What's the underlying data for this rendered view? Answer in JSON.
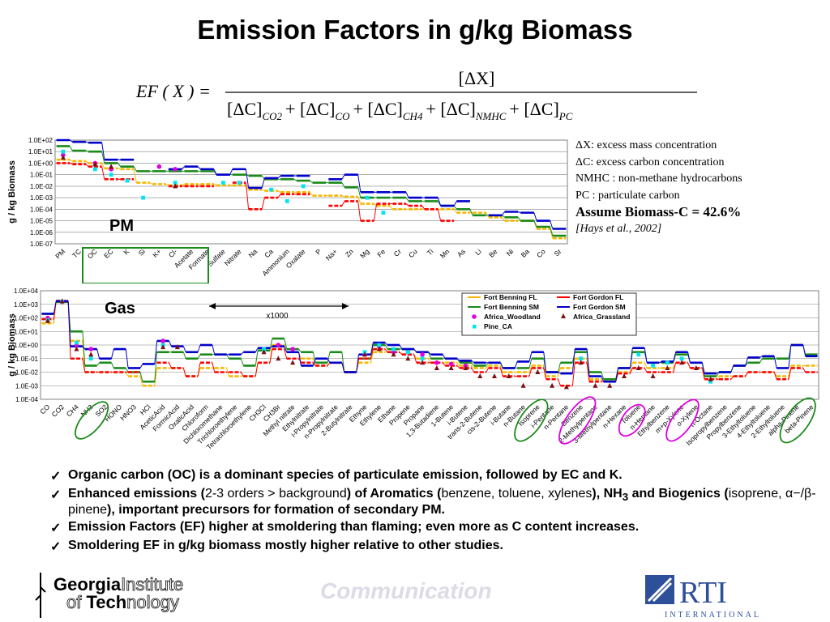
{
  "title": "Emission Factors in g/kg Biomass",
  "formula": {
    "lhs": "EF ( X ) =",
    "numerator": "[ΔX]",
    "denominator": [
      "[ΔC]",
      "CO2",
      "+ [ΔC]",
      "CO",
      "+ [ΔC]",
      "CH4",
      "+ [ΔC]",
      "NMHC",
      "+ [ΔC]",
      "PC"
    ]
  },
  "notes": [
    "ΔX: excess mass concentration",
    "ΔC: excess carbon concentration",
    "NMHC : non-methane hydrocarbons",
    "PC : particulate carbon"
  ],
  "assumption": "Assume Biomass-C = 42.6%",
  "citation": "[Hays et al., 2002]",
  "pm_label": "PM",
  "gas_label": "Gas",
  "x1000_label": "x1000",
  "bullets": [
    [
      {
        "t": "Organic carbon (OC) is a dominant species of particulate emission, followed by EC and K."
      }
    ],
    [
      {
        "t": "Enhanced emissions ("
      },
      {
        "t": "2-3 orders > background",
        "p": 1
      },
      {
        "t": ") of Aromatics ("
      },
      {
        "t": "benzene, toluene, xylenes",
        "p": 1
      },
      {
        "t": "), NH"
      },
      {
        "t": "3",
        "sub": 1
      },
      {
        "t": " and Biogenics ("
      },
      {
        "t": "isoprene, α−/β-pinene",
        "p": 1
      },
      {
        "t": "), important precursors for formation of secondary PM."
      }
    ],
    [
      {
        "t": "Emission Factors (EF) higher at smoldering than flaming; even more as C content increases."
      }
    ],
    [
      {
        "t": "Smoldering EF in g/kg biomass mostly higher relative to other studies."
      }
    ]
  ],
  "check_mark": "✓",
  "logo": {
    "gt_line1a": "Georgia",
    "gt_line1b": "Institute",
    "gt_line2a": "of ",
    "gt_line2b": "Tech",
    "gt_line2c": "nology",
    "footer": "Communication",
    "rti": "RTI",
    "rti_sub": "INTERNATIONAL"
  },
  "colors": {
    "benning_fl": "#f5b800",
    "benning_sm": "#1a8a1a",
    "africa_wood": "#e000e0",
    "pine_ca": "#00e5f5",
    "gordon_fl": "#ff0000",
    "gordon_sm": "#0000cc",
    "africa_grass": "#7a1010"
  },
  "chart_data": [
    {
      "type": "line",
      "scale": "log",
      "ylabel": "g / kg Biomass",
      "y_ticks": [
        "1.0E+02",
        "1.0E+01",
        "1.0E+00",
        "1.0E-01",
        "1.0E-02",
        "1.0E-03",
        "1.0E-04",
        "1.0E-05",
        "1.0E-06",
        "1.0E-07"
      ],
      "ylim": [
        1e-07,
        100
      ],
      "categories": [
        "PM",
        "TC",
        "OC",
        "EC",
        "K",
        "Si",
        "K+",
        "Cl-",
        "Acetate",
        "Formate",
        "Sulfate",
        "Nitrate",
        "Na",
        "Ca",
        "Ammonium",
        "Oxalate",
        "P",
        "Na+",
        "Zn",
        "Mg",
        "Fe",
        "Cr",
        "Cu",
        "Ti",
        "Mn",
        "As",
        "Li",
        "Be",
        "Ni",
        "Ba",
        "Co",
        "Sr"
      ],
      "series": [
        {
          "name": "Fort Benning FL",
          "color": "#f5b800",
          "values": [
            2,
            1.5,
            1,
            0.35,
            0.3,
            0.02,
            0.015,
            0.012,
            0.015,
            0.015,
            0.012,
            0.012,
            0.005,
            0.004,
            0.003,
            0.003,
            0.0015,
            0.0015,
            0.0012,
            0.0003,
            0.0002,
            0.0001,
            0.0001,
            0.0001,
            0.0001,
            5e-05,
            5e-05,
            2e-05,
            1e-05,
            1e-05,
            2e-06,
            3e-07
          ]
        },
        {
          "name": "Fort Benning SM",
          "color": "#1a8a1a",
          "values": [
            30,
            12,
            10,
            1,
            0.5,
            0.2,
            0.2,
            0.2,
            0.2,
            0.2,
            0.1,
            0.1,
            0.08,
            0.04,
            0.04,
            0.03,
            0.02,
            0.02,
            0.008,
            0.001,
            0.001,
            0.001,
            0.0005,
            0.0005,
            0.0002,
            0.0001,
            3e-05,
            3e-05,
            2e-05,
            1e-05,
            3e-06,
            5e-07
          ]
        },
        {
          "name": "Fort Gordon FL",
          "color": "#ff0000",
          "values": [
            1,
            0.8,
            0.5,
            0.04,
            0.04,
            null,
            null,
            0.01,
            0.01,
            0.01,
            null,
            0.02,
            0.0001,
            0.001,
            0.002,
            0.002,
            null,
            0.0002,
            0.0005,
            1e-05,
            0.0003,
            0.0003,
            0.0002,
            0.0001,
            1e-05,
            null,
            null,
            null,
            null,
            null,
            null,
            null
          ]
        },
        {
          "name": "Fort Gordon SM",
          "color": "#0000cc",
          "values": [
            100,
            70,
            60,
            2,
            2,
            null,
            null,
            0.3,
            0.5,
            0.3,
            0.1,
            0.3,
            0.007,
            0.05,
            0.08,
            0.08,
            null,
            0.04,
            0.1,
            0.003,
            0.003,
            0.003,
            0.001,
            0.001,
            0.0002,
            0.0005,
            null,
            3e-05,
            6e-05,
            5e-05,
            1e-05,
            2e-06
          ]
        },
        {
          "name": "Africa_Woodland",
          "color": "#e000e0",
          "markers": "circle",
          "values": [
            5,
            null,
            1,
            0.3,
            null,
            null,
            0.5,
            0.3,
            null,
            null,
            null,
            null,
            null,
            null,
            null,
            null,
            null,
            null,
            null,
            null,
            null,
            null,
            null,
            null,
            null,
            null,
            null,
            null,
            null,
            null,
            null,
            null
          ]
        },
        {
          "name": "Pine_CA",
          "color": "#00e5f5",
          "markers": "square",
          "values": [
            10,
            null,
            0.3,
            0.1,
            0.03,
            0.001,
            null,
            0.02,
            null,
            null,
            0.02,
            0.02,
            null,
            0.005,
            0.0005,
            0.01,
            null,
            null,
            null,
            0.001,
            5e-05,
            null,
            null,
            null,
            null,
            null,
            null,
            null,
            null,
            null,
            null,
            null
          ]
        },
        {
          "name": "Africa_Grassland",
          "color": "#7a1010",
          "markers": "triangle",
          "values": [
            3,
            null,
            0.8,
            0.5,
            null,
            null,
            null,
            0.01,
            null,
            null,
            null,
            null,
            null,
            null,
            null,
            null,
            null,
            null,
            null,
            null,
            null,
            null,
            null,
            null,
            null,
            null,
            null,
            null,
            null,
            null,
            null,
            null
          ]
        }
      ]
    },
    {
      "type": "line",
      "scale": "log",
      "ylabel": "g / kg Biomass",
      "y_ticks": [
        "1.0E+04",
        "1.0E+03",
        "1.0E+02",
        "1.0E+01",
        "1.0E+00",
        "1.0E-01",
        "1.0E-02",
        "1.0E-03",
        "1.0E-04"
      ],
      "ylim": [
        0.0001,
        10000.0
      ],
      "legend": "top-right",
      "categories": [
        "CO",
        "CO2",
        "CH4",
        "NH3",
        "SO2",
        "HONO",
        "HNO3",
        "HCl",
        "AceticAcid",
        "FormicAcid",
        "OxalicAcid",
        "Chloroform",
        "Dichloromethane",
        "Trichloroethylene",
        "Tetrachloroethylene",
        "CH3Cl",
        "CH3Br",
        "Methyl nitrate",
        "Ethylnitrate",
        "i-Propylnitrate",
        "n-Propylnitrate",
        "2-Butylnitrate",
        "Ethyne",
        "Ethylene",
        "Ethane",
        "Propene",
        "Propane",
        "1,3-Butadiene",
        "1-Butene",
        "i-Butene",
        "trans-2-Butene",
        "cis-2-Butene",
        "i-Butane",
        "n-Butane",
        "Isoprene",
        "i-Pentane",
        "n-Pentane",
        "Benzene",
        "2-Methylpentane",
        "3-Methylpentane",
        "n-Hexane",
        "Toluene",
        "n-Heptane",
        "Ethylbenzene",
        "m+p-Xylene",
        "o-Xylene",
        "n-Octane",
        "Isopropylbenzene",
        "Propylbenzene",
        "3-Ethyltoluene",
        "4-Ethyltoluene",
        "2-Ethyltoluene",
        "alpha-Pinene",
        "beta-Pinene"
      ],
      "series": [
        {
          "name": "Fort Benning FL",
          "color": "#f5b800",
          "values": [
            40,
            1500,
            2,
            0.01,
            0.01,
            0.01,
            0.005,
            0.001,
            0.02,
            0.02,
            0.005,
            0.02,
            0.02,
            0.005,
            0.005,
            0.05,
            1,
            0.3,
            0.1,
            0.03,
            0.05,
            0.01,
            0.05,
            0.3,
            0.3,
            0.2,
            0.1,
            0.05,
            0.05,
            0.03,
            0.02,
            0.03,
            0.01,
            0.01,
            0.03,
            0.005,
            0.02,
            0.1,
            0.003,
            0.002,
            0.01,
            0.05,
            0.02,
            0.02,
            0.05,
            0.02,
            0.003,
            0.005,
            0.005,
            0.01,
            0.01,
            0.005,
            0.03,
            0.03
          ]
        },
        {
          "name": "Fort Benning SM",
          "color": "#1a8a1a",
          "values": [
            200,
            1500,
            10,
            0.03,
            0.05,
            0.02,
            0.01,
            0.002,
            0.3,
            0.3,
            0.1,
            0.2,
            0.2,
            0.1,
            0.03,
            0.4,
            3,
            0.5,
            0.3,
            0.05,
            0.3,
            0.01,
            0.1,
            1,
            0.5,
            0.5,
            0.3,
            0.1,
            0.1,
            0.05,
            0.03,
            0.05,
            0.02,
            0.02,
            0.1,
            0.01,
            0.05,
            0.3,
            0.01,
            0.003,
            0.02,
            0.3,
            0.05,
            0.05,
            0.2,
            0.05,
            0.005,
            0.01,
            0.03,
            0.05,
            0.1,
            0.1,
            1,
            0.2
          ]
        },
        {
          "name": "Fort Gordon FL",
          "color": "#ff0000",
          "values": [
            80,
            1800,
            0.1,
            0.01,
            0.01,
            0.01,
            0.01,
            null,
            0.05,
            0.02,
            0.005,
            0.05,
            0.01,
            0.01,
            0.005,
            0.05,
            0.5,
            0.1,
            0.05,
            0.03,
            0.05,
            0.01,
            0.1,
            0.5,
            0.3,
            0.2,
            0.05,
            0.05,
            0.03,
            0.02,
            0.01,
            0.02,
            0.005,
            0.005,
            0.02,
            0.003,
            0.001,
            0.05,
            0.002,
            0.002,
            0.008,
            0.02,
            0.01,
            0.01,
            0.05,
            0.02,
            0.003,
            0.003,
            0.005,
            0.01,
            0.01,
            0.003,
            0.02,
            0.01
          ]
        },
        {
          "name": "Fort Gordon SM",
          "color": "#0000cc",
          "values": [
            200,
            1700,
            0.8,
            0.5,
            0.1,
            0.5,
            0.02,
            0.04,
            2,
            0.8,
            0.3,
            1,
            0.2,
            0.2,
            0.3,
            0.6,
            0.8,
            0.3,
            0.03,
            0.1,
            0.05,
            0.01,
            0.2,
            1.5,
            1,
            0.5,
            0.3,
            0.2,
            0.1,
            0.07,
            0.05,
            0.05,
            0.02,
            0.06,
            0.3,
            0.01,
            0.008,
            0.5,
            0.005,
            0.002,
            0.02,
            0.6,
            0.05,
            0.06,
            0.3,
            0.05,
            0.008,
            0.01,
            0.03,
            0.12,
            0.15,
            0.02,
            1,
            0.15
          ]
        },
        {
          "name": "Africa_Woodland",
          "color": "#e000e0",
          "markers": "circle",
          "values": [
            100,
            1500,
            1,
            0.5,
            null,
            null,
            null,
            null,
            2,
            null,
            null,
            null,
            null,
            null,
            null,
            null,
            1,
            0.5,
            null,
            null,
            null,
            null,
            0.2,
            0.8,
            0.3,
            0.3,
            0.2,
            0.05,
            0.04,
            0.03,
            null,
            null,
            null,
            null,
            null,
            null,
            null,
            null,
            null,
            null,
            null,
            null,
            null,
            null,
            null,
            null,
            null,
            null,
            null,
            null,
            null,
            null,
            null,
            null
          ]
        },
        {
          "name": "Pine_CA",
          "color": "#00e5f5",
          "markers": "square",
          "values": [
            70,
            1600,
            1.5,
            0.1,
            null,
            null,
            null,
            null,
            1,
            null,
            null,
            null,
            null,
            null,
            null,
            0.5,
            null,
            null,
            null,
            null,
            null,
            null,
            0.3,
            1,
            0.5,
            0.3,
            0.1,
            null,
            null,
            null,
            null,
            null,
            null,
            null,
            null,
            null,
            null,
            0.1,
            null,
            null,
            null,
            0.2,
            0.03,
            0.05,
            0.1,
            null,
            0.002,
            null,
            null,
            null,
            null,
            null,
            null,
            null
          ]
        },
        {
          "name": "Africa_Grassland",
          "color": "#7a1010",
          "markers": "triangle",
          "values": [
            60,
            1700,
            0.5,
            0.2,
            null,
            null,
            null,
            null,
            0.7,
            0.7,
            null,
            null,
            null,
            null,
            null,
            0.3,
            0.1,
            0.05,
            null,
            null,
            null,
            null,
            0.2,
            0.5,
            0.2,
            0.1,
            0.05,
            0.02,
            0.02,
            0.02,
            0.005,
            0.005,
            0.005,
            0.001,
            0.01,
            0.001,
            0.0008,
            0.05,
            0.001,
            0.001,
            0.005,
            0.02,
            0.005,
            0.02,
            0.05,
            0.02,
            0.003,
            null,
            null,
            null,
            null,
            null,
            null,
            null
          ]
        }
      ]
    }
  ]
}
